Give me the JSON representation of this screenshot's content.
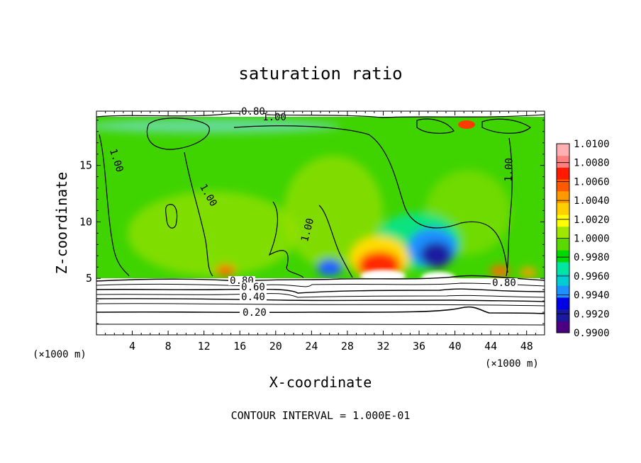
{
  "chart_data": {
    "type": "heatmap",
    "title": "saturation ratio",
    "xlabel": "X-coordinate",
    "ylabel": "Z-coordinate",
    "x_unit": "(×1000 m)",
    "z_unit": "(×1000 m)",
    "xlim": [
      0,
      50
    ],
    "ylim": [
      0,
      19.8
    ],
    "x_ticks": [
      4,
      8,
      12,
      16,
      20,
      24,
      28,
      32,
      36,
      40,
      44,
      48
    ],
    "y_ticks": [
      5,
      10,
      15
    ],
    "x_tick_labels": [
      "4",
      "8",
      "12",
      "16",
      "20",
      "24",
      "28",
      "32",
      "36",
      "40",
      "44",
      "48"
    ],
    "y_tick_labels": [
      "5",
      "10",
      "15"
    ],
    "colorbar": {
      "min": 0.99,
      "max": 1.01,
      "labels": [
        "1.0100",
        "1.0080",
        "1.0060",
        "1.0040",
        "1.0020",
        "1.0000",
        "0.9980",
        "0.9960",
        "0.9940",
        "0.9920",
        "0.9900"
      ],
      "colors": [
        "#4b0082",
        "#1a1a9e",
        "#0000e6",
        "#1e90ff",
        "#00ccd1",
        "#00e6a0",
        "#00d800",
        "#5ad800",
        "#9fe600",
        "#ffff00",
        "#ffd000",
        "#ff9900",
        "#ff5a00",
        "#ff1a00",
        "#ff7f7f",
        "#ffb0b0"
      ]
    },
    "contour_labels": [
      {
        "text": "0.80",
        "x": 17.0,
        "z": 19.8
      },
      {
        "text": "1.00",
        "x": 18.0,
        "z": 19.4
      },
      {
        "text": "1.00",
        "x": 1.5,
        "z": 15.4
      },
      {
        "text": "1.00",
        "x": 12.3,
        "z": 12.3
      },
      {
        "text": "1.00",
        "x": 23.2,
        "z": 9.8
      },
      {
        "text": "1.00",
        "x": 46.2,
        "z": 15.2
      },
      {
        "text": "0.80",
        "x": 16.3,
        "z": 4.7
      },
      {
        "text": "0.60",
        "x": 17.0,
        "z": 4.2
      },
      {
        "text": "0.40",
        "x": 17.0,
        "z": 3.3
      },
      {
        "text": "0.20",
        "x": 17.0,
        "z": 2.1
      },
      {
        "text": "0.80",
        "x": 45.5,
        "z": 4.6
      }
    ],
    "contour_interval_text": "CONTOUR INTERVAL =  1.000E-01"
  }
}
